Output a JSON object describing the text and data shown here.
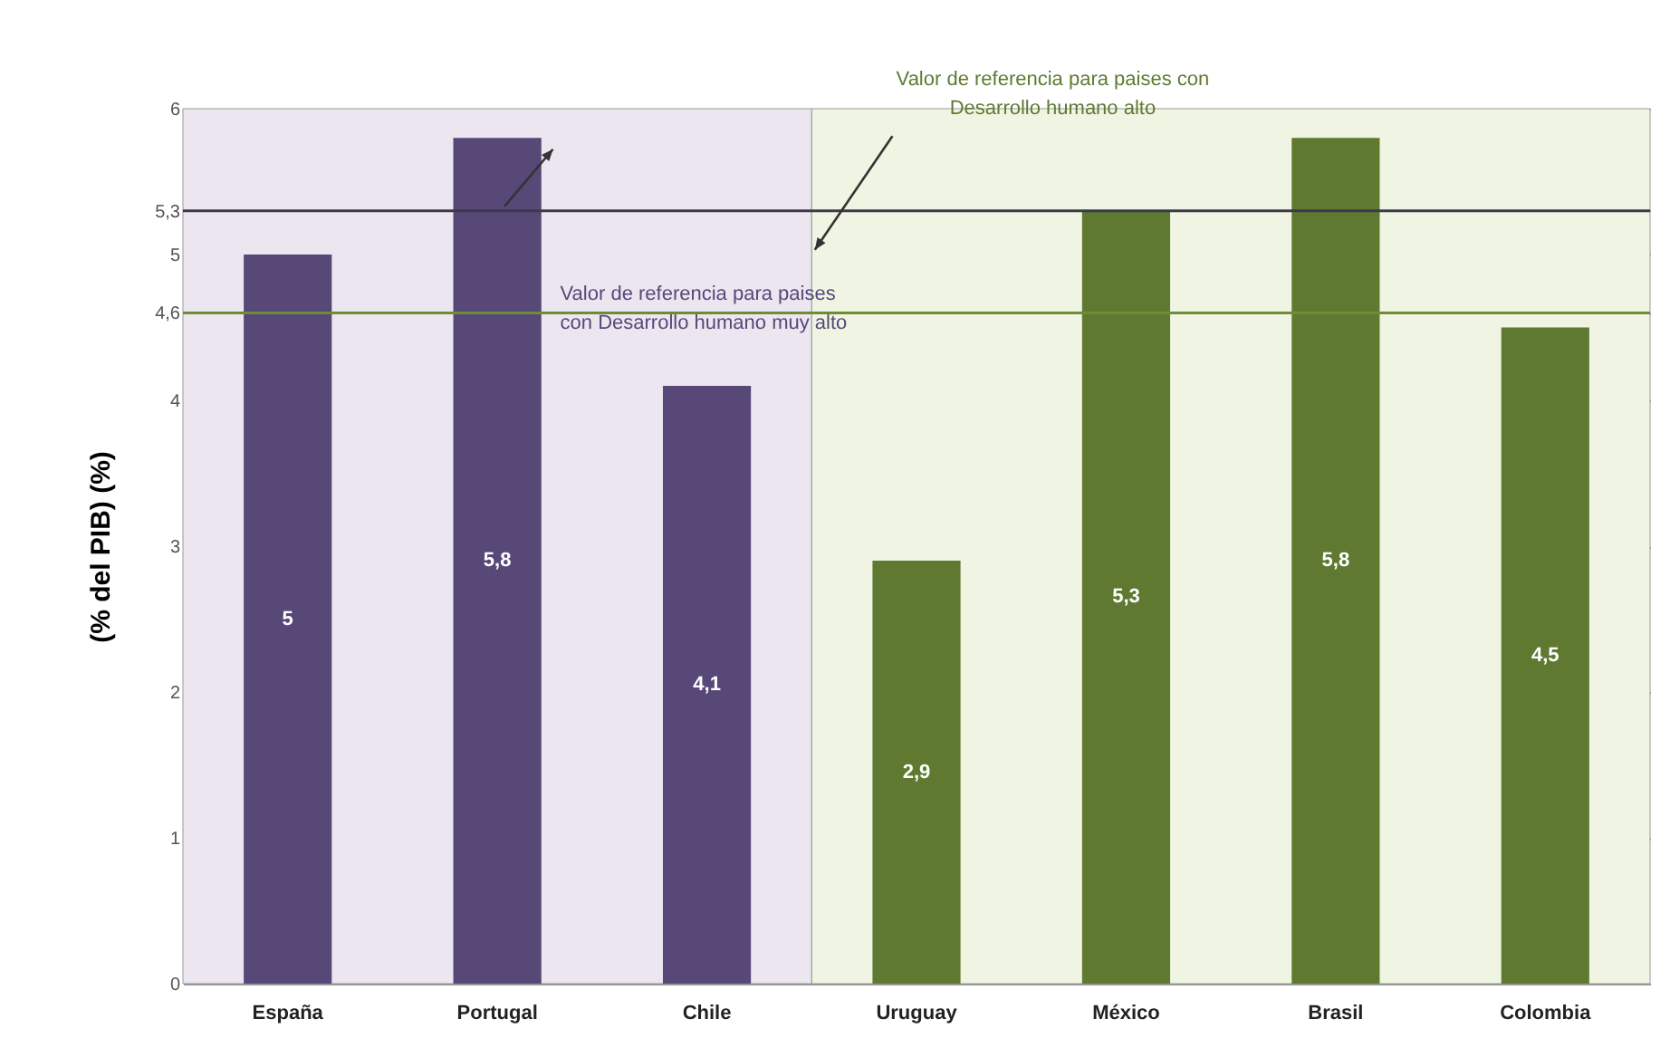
{
  "chart_data": {
    "type": "bar",
    "ylabel": "(% del PIB) (%)",
    "categories": [
      "España",
      "Portugal",
      "Chile",
      "Uruguay",
      "México",
      "Brasil",
      "Colombia"
    ],
    "values": [
      5,
      5.8,
      4.1,
      2.9,
      5.3,
      5.8,
      4.5
    ],
    "colors": [
      "#574878",
      "#574878",
      "#574878",
      "#5f7a30",
      "#5f7a30",
      "#5f7a30",
      "#5f7a30"
    ],
    "value_labels": [
      "5",
      "5,8",
      "4,1",
      "2,9",
      "5,3",
      "5,8",
      "4,5"
    ],
    "ylim": [
      0,
      6
    ],
    "yticks": [
      0,
      1,
      2,
      3,
      4,
      {
        "value": 4.6,
        "label": "4,6"
      },
      5,
      {
        "value": 5.3,
        "label": "5,3"
      },
      6
    ],
    "grid": "y",
    "ref_lines": [
      {
        "axis": "y",
        "value": 5.3,
        "color": "#3c3a4a"
      },
      {
        "axis": "y",
        "value": 4.6,
        "color": "#6e8c34"
      }
    ],
    "bands": [
      {
        "axis": "x",
        "from": "España",
        "to": "Chile",
        "color": "#ece6f1"
      },
      {
        "axis": "x",
        "from": "Uruguay",
        "to": "Colombia",
        "color": "#f0f5e3"
      }
    ],
    "annotations": [
      "Valor de referencia para paises\ncon Desarrollo humano muy alto",
      "Valor de referencia para paises con\nDesarrollo humano alto"
    ]
  }
}
